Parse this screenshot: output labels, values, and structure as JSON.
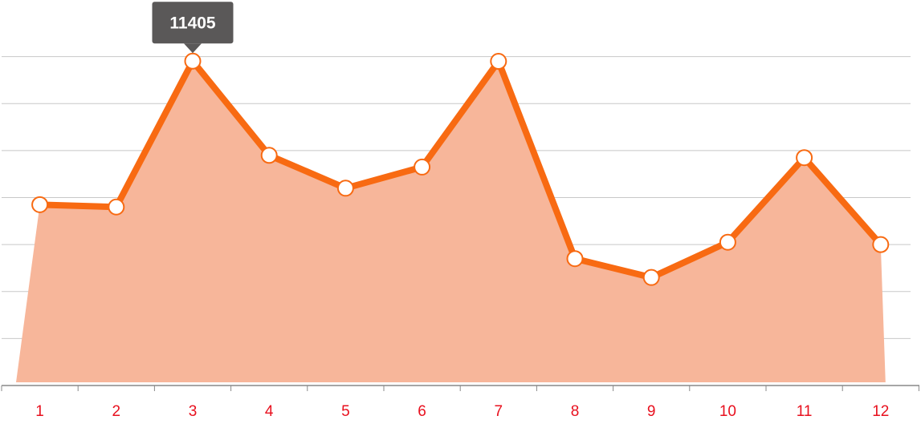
{
  "chart_data": {
    "type": "area",
    "x": [
      "1",
      "2",
      "3",
      "4",
      "5",
      "6",
      "7",
      "8",
      "9",
      "10",
      "11",
      "12"
    ],
    "values": [
      8350,
      8300,
      11405,
      9400,
      8700,
      9150,
      11400,
      7200,
      6800,
      7550,
      9350,
      7500
    ],
    "ylim": [
      4500,
      12450
    ],
    "gridlines": [
      5500,
      6500,
      7500,
      8500,
      9500,
      10500,
      11500
    ],
    "grid": true,
    "title": "",
    "xlabel": "",
    "ylabel": "",
    "tooltip": {
      "point_index": 2,
      "label": "11405"
    },
    "colors": {
      "line": "#f86a12",
      "area": "#f7b69a",
      "point_fill": "#ffffff",
      "grid": "#c8c8c8",
      "axis": "#888888",
      "tick_label": "#e8101e",
      "tooltip_bg": "#5a5858",
      "tooltip_text": "#ffffff"
    }
  }
}
